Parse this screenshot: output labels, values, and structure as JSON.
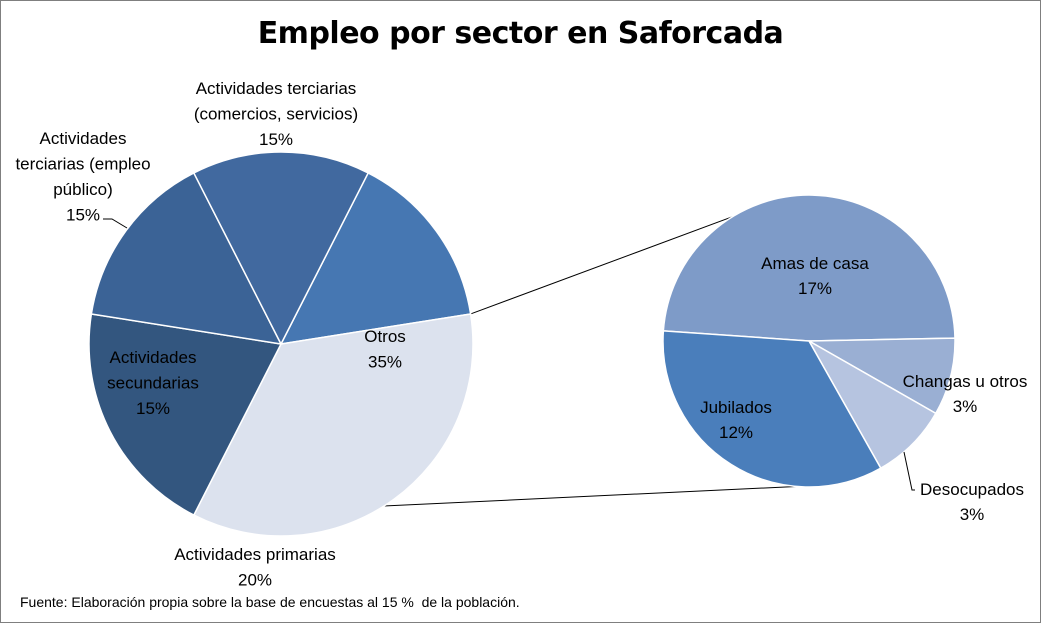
{
  "chart_data": {
    "type": "pie",
    "subtype": "pie-of-pie",
    "title": "Empleo por sector en Saforcada",
    "unit": "%",
    "primary": {
      "slices": [
        {
          "label": "Actividades terciarias (comercios, servicios)",
          "label_lines": [
            "Actividades terciarias",
            "(comercios, servicios)"
          ],
          "value": 15,
          "value_text": "15%",
          "color": "#4677b2"
        },
        {
          "label": "Otros",
          "label_lines": [
            "Otros"
          ],
          "value": 35,
          "value_text": "35%",
          "color": "#dce2ee"
        },
        {
          "label": "Actividades primarias",
          "label_lines": [
            "Actividades primarias"
          ],
          "value": 20,
          "value_text": "20%",
          "color": "#33567f"
        },
        {
          "label": "Actividades secundarias",
          "label_lines": [
            "Actividades",
            "secundarias"
          ],
          "value": 15,
          "value_text": "15%",
          "color": "#3b6396"
        },
        {
          "label": "Actividades terciarias (empleo público)",
          "label_lines": [
            "Actividades",
            "terciarias (empleo",
            "público)"
          ],
          "value": 15,
          "value_text": "15%",
          "color": "#41699f"
        }
      ]
    },
    "secondary": {
      "breakdown_of": "Otros",
      "slices": [
        {
          "label": "Amas de casa",
          "label_lines": [
            "Amas de casa"
          ],
          "value": 17,
          "value_text": "17%",
          "color": "#7e9bc8"
        },
        {
          "label": "Changas u otros",
          "label_lines": [
            "Changas u otros"
          ],
          "value": 3,
          "value_text": "3%",
          "color": "#9aafd3"
        },
        {
          "label": "Desocupados",
          "label_lines": [
            "Desocupados"
          ],
          "value": 3,
          "value_text": "3%",
          "color": "#b6c4e0"
        },
        {
          "label": "Jubilados",
          "label_lines": [
            "Jubilados"
          ],
          "value": 12,
          "value_text": "12%",
          "color": "#4a7ebb"
        }
      ]
    },
    "note": "Fuente: Elaboración propia sobre la base de encuestas al 15 %  de la población."
  }
}
